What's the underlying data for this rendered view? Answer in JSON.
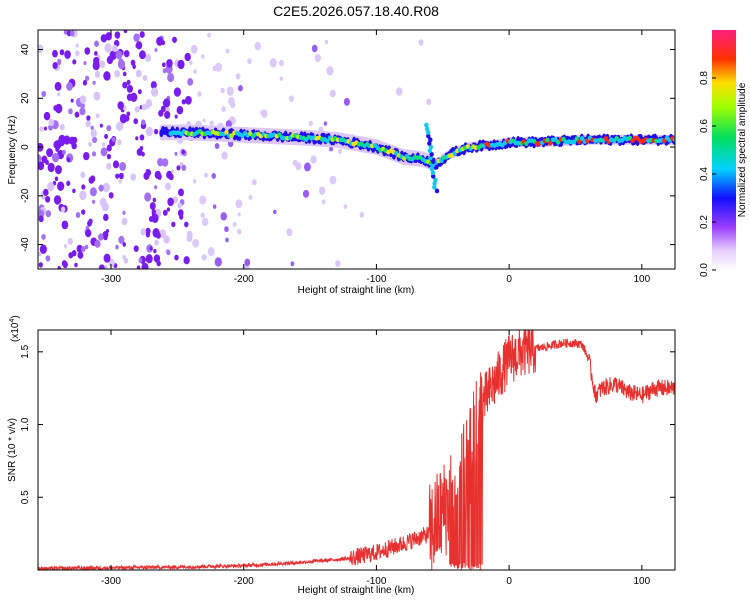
{
  "title": "C2E5.2026.057.18.40.R08",
  "chart_data": [
    {
      "type": "heatmap",
      "name": "spectrogram",
      "xlabel": "Height of straight line (km)",
      "ylabel": "Frequency (Hz)",
      "xlim": [
        -355,
        125
      ],
      "ylim": [
        -50,
        48
      ],
      "xticks": [
        -300,
        -200,
        -100,
        0,
        100
      ],
      "yticks": [
        -40,
        -20,
        0,
        20,
        40
      ],
      "ridge": {
        "x": [
          -262,
          -240,
          -200,
          -160,
          -130,
          -100,
          -80,
          -65,
          -55,
          -45,
          -30,
          -10,
          0,
          20,
          60,
          90,
          125
        ],
        "y": [
          6,
          6,
          5,
          4,
          3,
          0,
          -4,
          -5,
          -7,
          -3,
          0,
          1,
          2,
          2,
          3,
          3,
          3
        ]
      },
      "colorbar": {
        "label": "Normalized spectral amplitude",
        "range": [
          0.0,
          1.0
        ],
        "ticks": [
          "0.0",
          "0.2",
          "0.4",
          "0.6",
          "0.8"
        ]
      }
    },
    {
      "type": "line",
      "name": "snr",
      "xlabel": "Height of straight line (km)",
      "ylabel": "SNR (10 * v/v)",
      "multiplier": "(x10",
      "exponent": "4",
      "xlim": [
        -355,
        125
      ],
      "ylim": [
        0,
        1.65
      ],
      "xticks": [
        -300,
        -200,
        -100,
        0,
        100
      ],
      "yticks": [
        "0.5",
        "1.0",
        "1.5"
      ],
      "series": [
        {
          "name": "SNR",
          "color": "#e8312e",
          "x": [
            -355,
            -300,
            -250,
            -200,
            -160,
            -120,
            -100,
            -80,
            -60,
            -50,
            -40,
            -30,
            -25,
            -20,
            -10,
            0,
            10,
            20,
            30,
            40,
            50,
            55,
            60,
            65,
            70,
            80,
            90,
            100,
            110,
            125
          ],
          "y": [
            0.01,
            0.015,
            0.02,
            0.03,
            0.05,
            0.08,
            0.12,
            0.18,
            0.25,
            0.4,
            0.55,
            0.75,
            1.0,
            1.15,
            1.3,
            1.45,
            1.5,
            1.52,
            1.54,
            1.56,
            1.56,
            1.55,
            1.45,
            1.2,
            1.25,
            1.28,
            1.22,
            1.2,
            1.25,
            1.25
          ]
        }
      ]
    }
  ]
}
